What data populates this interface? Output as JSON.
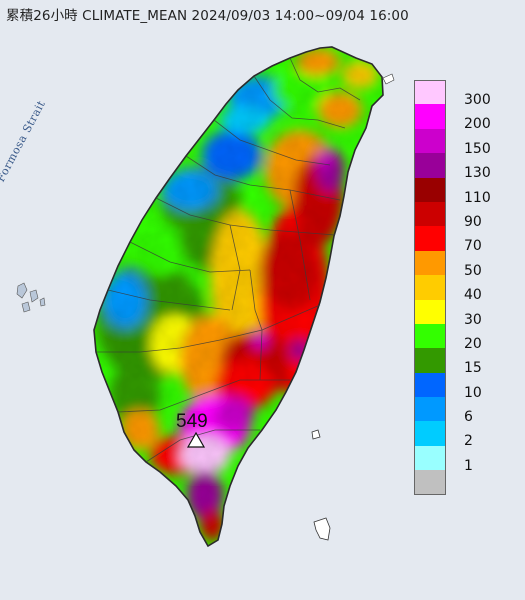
{
  "header": {
    "title": "累積26小時 CLIMATE_MEAN 2024/09/03 14:00~09/04 16:00"
  },
  "map": {
    "strait_label": "Formosa Strait",
    "max_station": {
      "value": "549",
      "marker": "triangle-marker-icon"
    }
  },
  "legend": {
    "items": [
      {
        "label": "300",
        "color": "#ffc8ff"
      },
      {
        "label": "200",
        "color": "#ff00ff"
      },
      {
        "label": "150",
        "color": "#cc00cc"
      },
      {
        "label": "130",
        "color": "#990099"
      },
      {
        "label": "110",
        "color": "#990000"
      },
      {
        "label": "90",
        "color": "#cc0000"
      },
      {
        "label": "70",
        "color": "#ff0000"
      },
      {
        "label": "50",
        "color": "#ff9900"
      },
      {
        "label": "40",
        "color": "#ffcc00"
      },
      {
        "label": "30",
        "color": "#ffff00"
      },
      {
        "label": "20",
        "color": "#33ff00"
      },
      {
        "label": "15",
        "color": "#339900"
      },
      {
        "label": "10",
        "color": "#0066ff"
      },
      {
        "label": "6",
        "color": "#0099ff"
      },
      {
        "label": "2",
        "color": "#00ccff"
      },
      {
        "label": "1",
        "color": "#99ffff"
      },
      {
        "label": "",
        "color": "#c0c0c0"
      }
    ]
  },
  "colors": {
    "sea": "#e6eaf0",
    "land_outline": "#2b2b2b",
    "county_lines": "#3a3a3a"
  }
}
